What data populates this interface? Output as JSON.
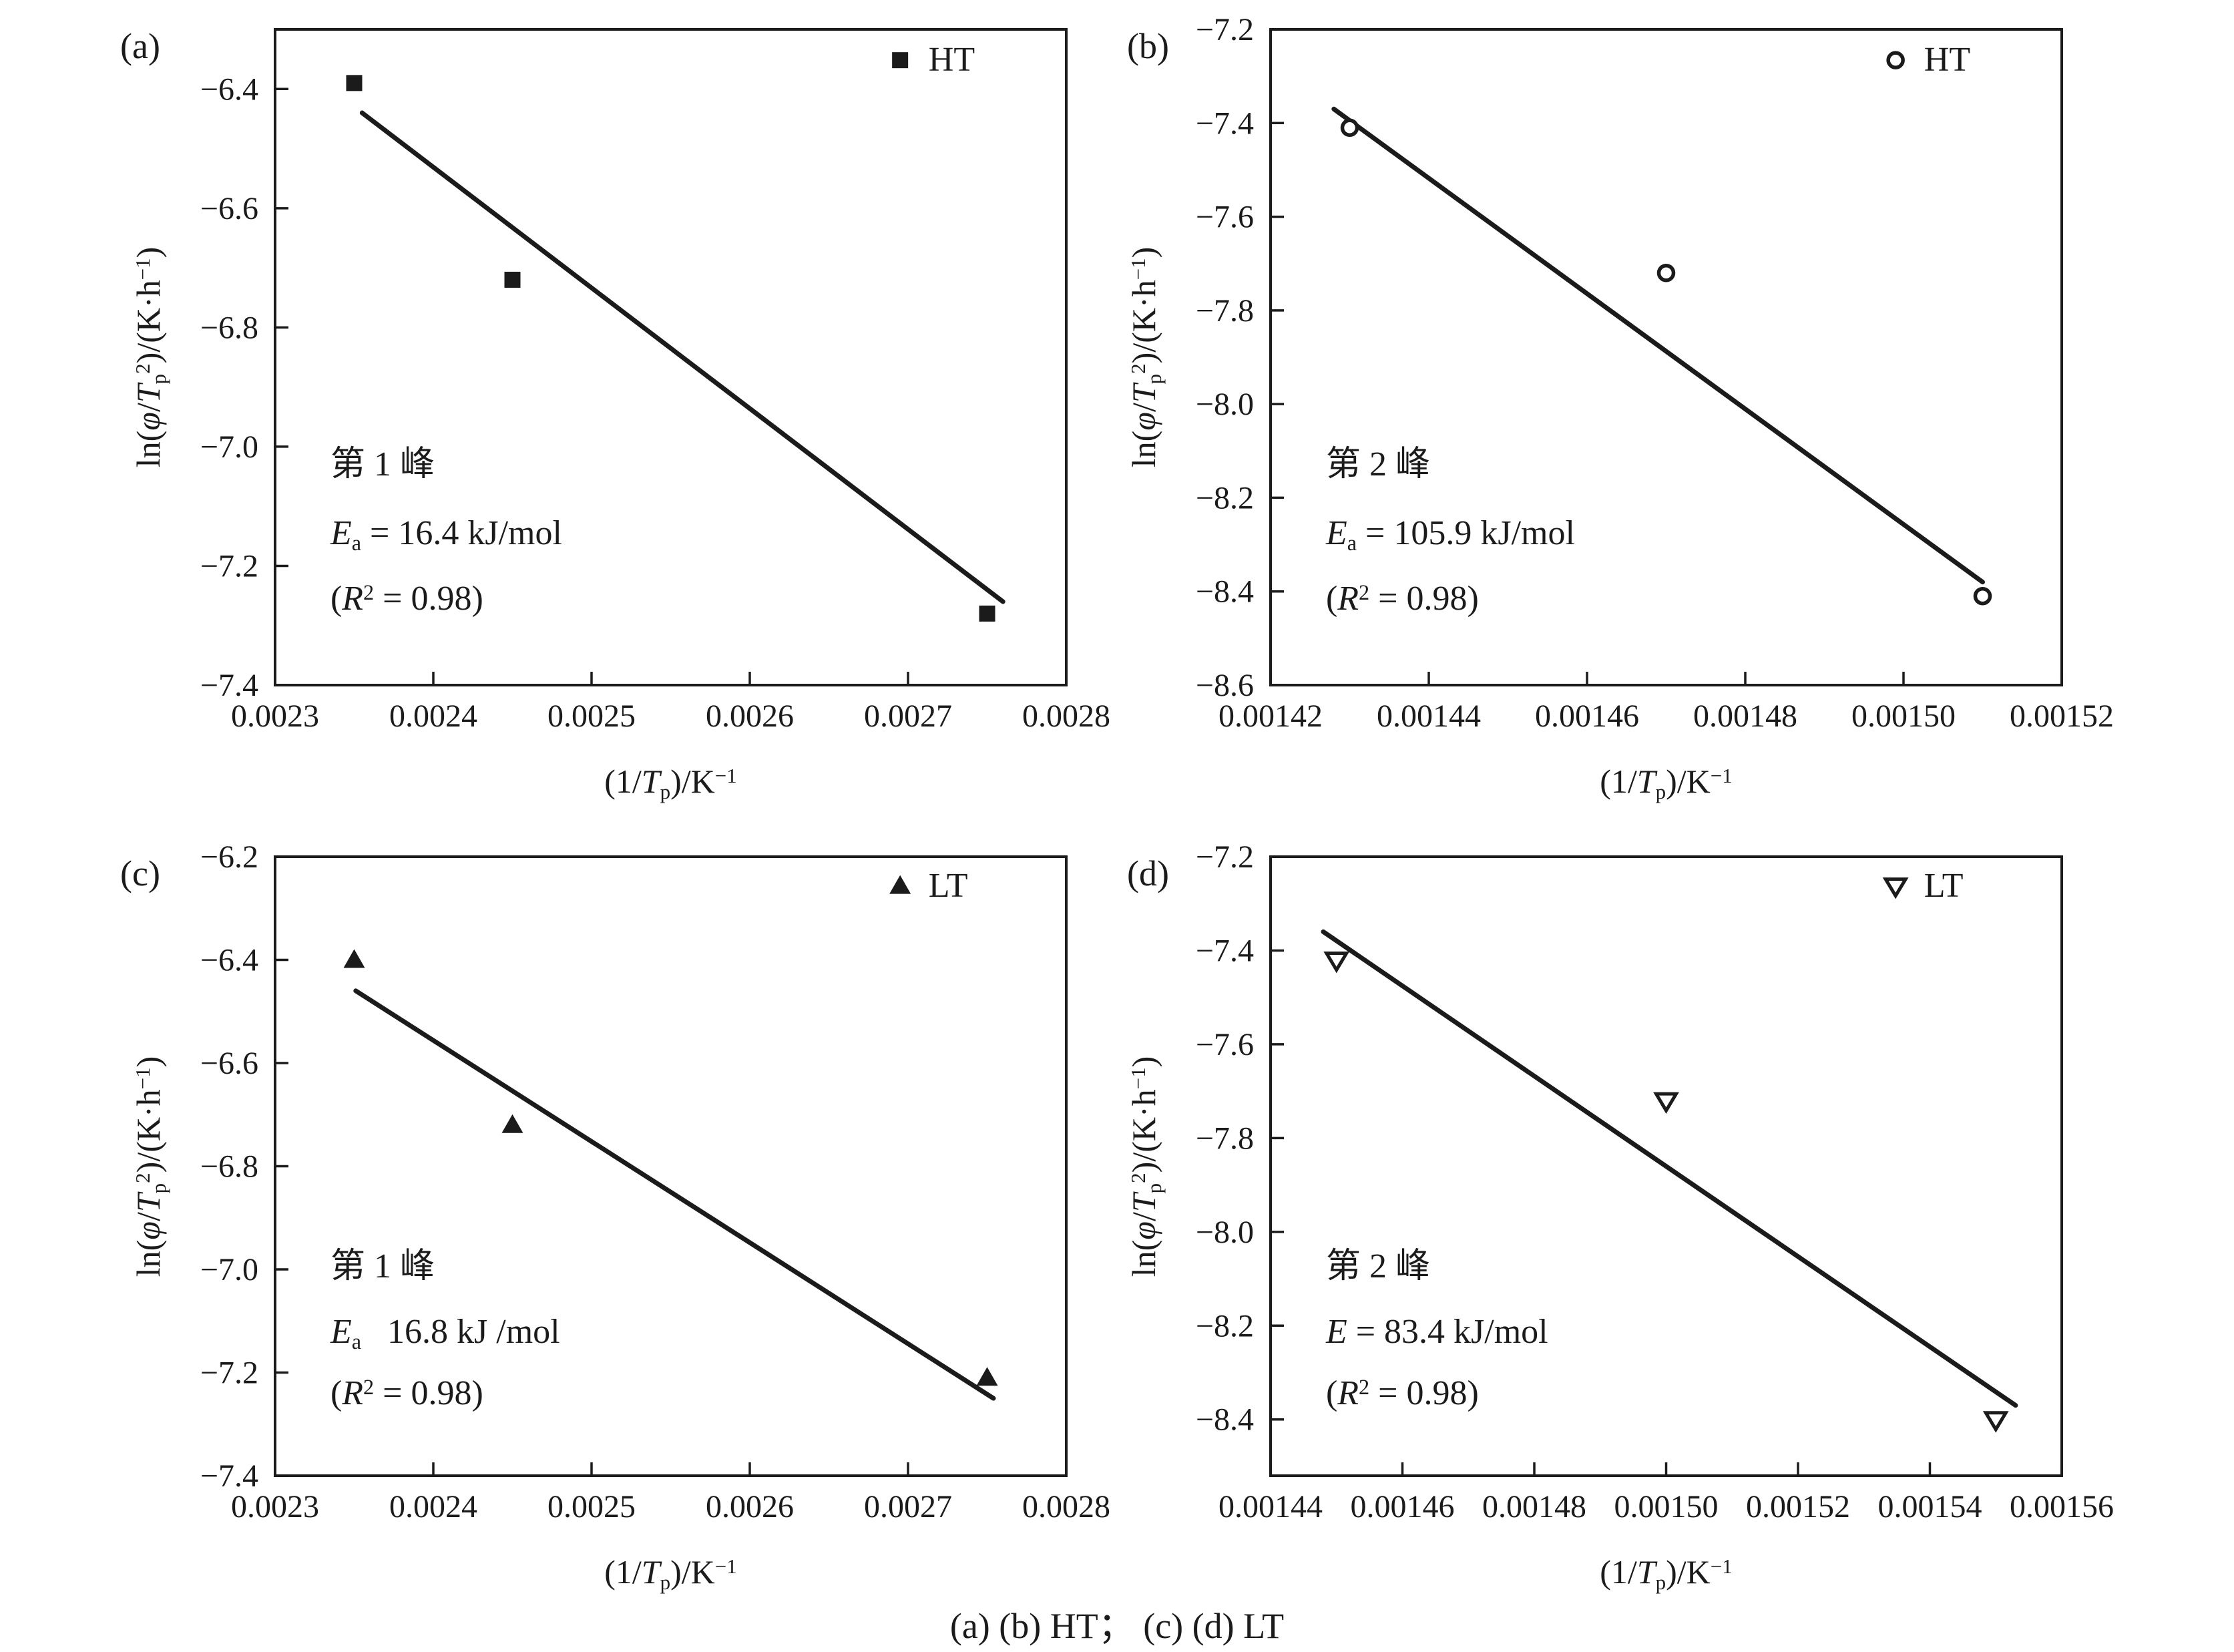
{
  "figure": {
    "caption": "(a) (b) HT； (c) (d) LT",
    "background": "#ffffff",
    "ink_color": "#1b1b1b"
  },
  "axis_labels": {
    "x_segments": [
      {
        "t": "(1/"
      },
      {
        "t": "T",
        "s": "i"
      },
      {
        "t": "p",
        "s": "sub"
      },
      {
        "t": ")/K"
      },
      {
        "t": "−1",
        "s": "sup"
      }
    ],
    "y_segments": [
      {
        "t": "ln("
      },
      {
        "t": "φ",
        "s": "i"
      },
      {
        "t": "/"
      },
      {
        "t": "T",
        "s": "i"
      },
      {
        "t": "p",
        "s": "sub"
      },
      {
        "t": "2",
        "s": "sup"
      },
      {
        "t": ")/(K·h"
      },
      {
        "t": "−1",
        "s": "sup"
      },
      {
        "t": ")"
      }
    ]
  },
  "chart_data": [
    {
      "id": "a",
      "type": "scatter",
      "panel_tag": "(a)",
      "series_label": "HT",
      "marker": "filled-square",
      "legend_position": "top-right",
      "xlabel": "(1/Tp)/K−1",
      "ylabel": "ln(φ/Tp2)/(K·h−1)",
      "xlim": [
        0.0023,
        0.0028
      ],
      "ylim": [
        -7.4,
        -6.3
      ],
      "x_tick_values": [
        0.0023,
        0.0024,
        0.0025,
        0.0026,
        0.0027,
        0.0028
      ],
      "x_tick_labels": [
        "0.0023",
        "0.0024",
        "0.0025",
        "0.0026",
        "0.0027",
        "0.0028"
      ],
      "y_tick_values": [
        -6.4,
        -6.6,
        -6.8,
        -7.0,
        -7.2,
        -7.4
      ],
      "y_tick_labels": [
        "−6.4",
        "−6.6",
        "−6.8",
        "−7.0",
        "−7.2",
        "−7.4"
      ],
      "points": [
        [
          0.00235,
          -6.39
        ],
        [
          0.00245,
          -6.72
        ],
        [
          0.00275,
          -7.28
        ]
      ],
      "fit_line": {
        "x1": 0.002355,
        "y1": -6.44,
        "x2": 0.00276,
        "y2": -7.26
      },
      "annotation": [
        [
          {
            "t": "第 1 峰"
          }
        ],
        [
          {
            "t": "E",
            "s": "i"
          },
          {
            "t": "a",
            "s": "sub"
          },
          {
            "t": " = 16.4 kJ/mol"
          }
        ],
        [
          {
            "t": "("
          },
          {
            "t": "R",
            "s": "i"
          },
          {
            "t": "2",
            "s": "sup"
          },
          {
            "t": " = 0.98)"
          }
        ]
      ]
    },
    {
      "id": "b",
      "type": "scatter",
      "panel_tag": "(b)",
      "series_label": "HT",
      "marker": "open-circle",
      "legend_position": "top-right",
      "xlabel": "(1/Tp)/K−1",
      "ylabel": "ln(φ/Tp2)/(K·h−1)",
      "xlim": [
        0.00142,
        0.00152
      ],
      "ylim": [
        -8.6,
        -7.2
      ],
      "x_tick_values": [
        0.00142,
        0.00144,
        0.00146,
        0.00148,
        0.0015,
        0.00152
      ],
      "x_tick_labels": [
        "0.00142",
        "0.00144",
        "0.00146",
        "0.00148",
        "0.00150",
        "0.00152"
      ],
      "y_tick_values": [
        -7.2,
        -7.4,
        -7.6,
        -7.8,
        -8.0,
        -8.2,
        -8.4,
        -8.6
      ],
      "y_tick_labels": [
        "−7.2",
        "−7.4",
        "−7.6",
        "−7.8",
        "−8.0",
        "−8.2",
        "−8.4",
        "−8.6"
      ],
      "points": [
        [
          0.00143,
          -7.41
        ],
        [
          0.00147,
          -7.72
        ],
        [
          0.00151,
          -8.41
        ]
      ],
      "fit_line": {
        "x1": 0.001428,
        "y1": -7.37,
        "x2": 0.00151,
        "y2": -8.38
      },
      "annotation": [
        [
          {
            "t": "第 2 峰"
          }
        ],
        [
          {
            "t": "E",
            "s": "i"
          },
          {
            "t": "a",
            "s": "sub"
          },
          {
            "t": " = 105.9 kJ/mol"
          }
        ],
        [
          {
            "t": "("
          },
          {
            "t": "R",
            "s": "i"
          },
          {
            "t": "2",
            "s": "sup"
          },
          {
            "t": " = 0.98)"
          }
        ]
      ]
    },
    {
      "id": "c",
      "type": "scatter",
      "panel_tag": "(c)",
      "series_label": "LT",
      "marker": "filled-triangle-up",
      "legend_position": "top-right",
      "xlabel": "(1/Tp)/K−1",
      "ylabel": "ln(φ/Tp2)/(K·h−1)",
      "xlim": [
        0.0023,
        0.0028
      ],
      "ylim": [
        -7.4,
        -6.2
      ],
      "x_tick_values": [
        0.0023,
        0.0024,
        0.0025,
        0.0026,
        0.0027,
        0.0028
      ],
      "x_tick_labels": [
        "0.0023",
        "0.0024",
        "0.0025",
        "0.0026",
        "0.0027",
        "0.0028"
      ],
      "y_tick_values": [
        -6.2,
        -6.4,
        -6.6,
        -6.8,
        -7.0,
        -7.2,
        -7.4
      ],
      "y_tick_labels": [
        "−6.2",
        "−6.4",
        "−6.6",
        "−6.8",
        "−7.0",
        "−7.2",
        "−7.4"
      ],
      "points": [
        [
          0.00235,
          -6.4
        ],
        [
          0.00245,
          -6.72
        ],
        [
          0.00275,
          -7.21
        ]
      ],
      "fit_line": {
        "x1": 0.002351,
        "y1": -6.46,
        "x2": 0.002754,
        "y2": -7.25
      },
      "annotation": [
        [
          {
            "t": "第 1 峰"
          }
        ],
        [
          {
            "t": "E",
            "s": "i"
          },
          {
            "t": "a",
            "s": "sub"
          },
          {
            "t": "   16.8 kJ /mol"
          }
        ],
        [
          {
            "t": "("
          },
          {
            "t": "R",
            "s": "i"
          },
          {
            "t": "2",
            "s": "sup"
          },
          {
            "t": " = 0.98)"
          }
        ]
      ]
    },
    {
      "id": "d",
      "type": "scatter",
      "panel_tag": "(d)",
      "series_label": "LT",
      "marker": "open-triangle-down",
      "legend_position": "top-right",
      "xlabel": "(1/Tp)/K−1",
      "ylabel": "ln(φ/Tp2)/(K·h−1)",
      "xlim": [
        0.00144,
        0.00156
      ],
      "ylim": [
        -8.52,
        -7.2
      ],
      "x_tick_values": [
        0.00144,
        0.00146,
        0.00148,
        0.0015,
        0.00152,
        0.00154,
        0.00156
      ],
      "x_tick_labels": [
        "0.00144",
        "0.00146",
        "0.00148",
        "0.00150",
        "0.00152",
        "0.00154",
        "0.00156"
      ],
      "y_tick_values": [
        -7.2,
        -7.4,
        -7.6,
        -7.8,
        -8.0,
        -8.2,
        -8.4
      ],
      "y_tick_labels": [
        "−7.2",
        "−7.4",
        "−7.6",
        "−7.8",
        "−8.0",
        "−8.2",
        "−8.4"
      ],
      "points": [
        [
          0.00145,
          -7.42
        ],
        [
          0.0015,
          -7.72
        ],
        [
          0.00155,
          -8.4
        ]
      ],
      "fit_line": {
        "x1": 0.001448,
        "y1": -7.36,
        "x2": 0.001553,
        "y2": -8.37
      },
      "annotation": [
        [
          {
            "t": "第 2 峰"
          }
        ],
        [
          {
            "t": "E",
            "s": "i"
          },
          {
            "t": " = 83.4 kJ/mol"
          }
        ],
        [
          {
            "t": "("
          },
          {
            "t": "R",
            "s": "i"
          },
          {
            "t": "2",
            "s": "sup"
          },
          {
            "t": " = 0.98)"
          }
        ]
      ]
    }
  ]
}
